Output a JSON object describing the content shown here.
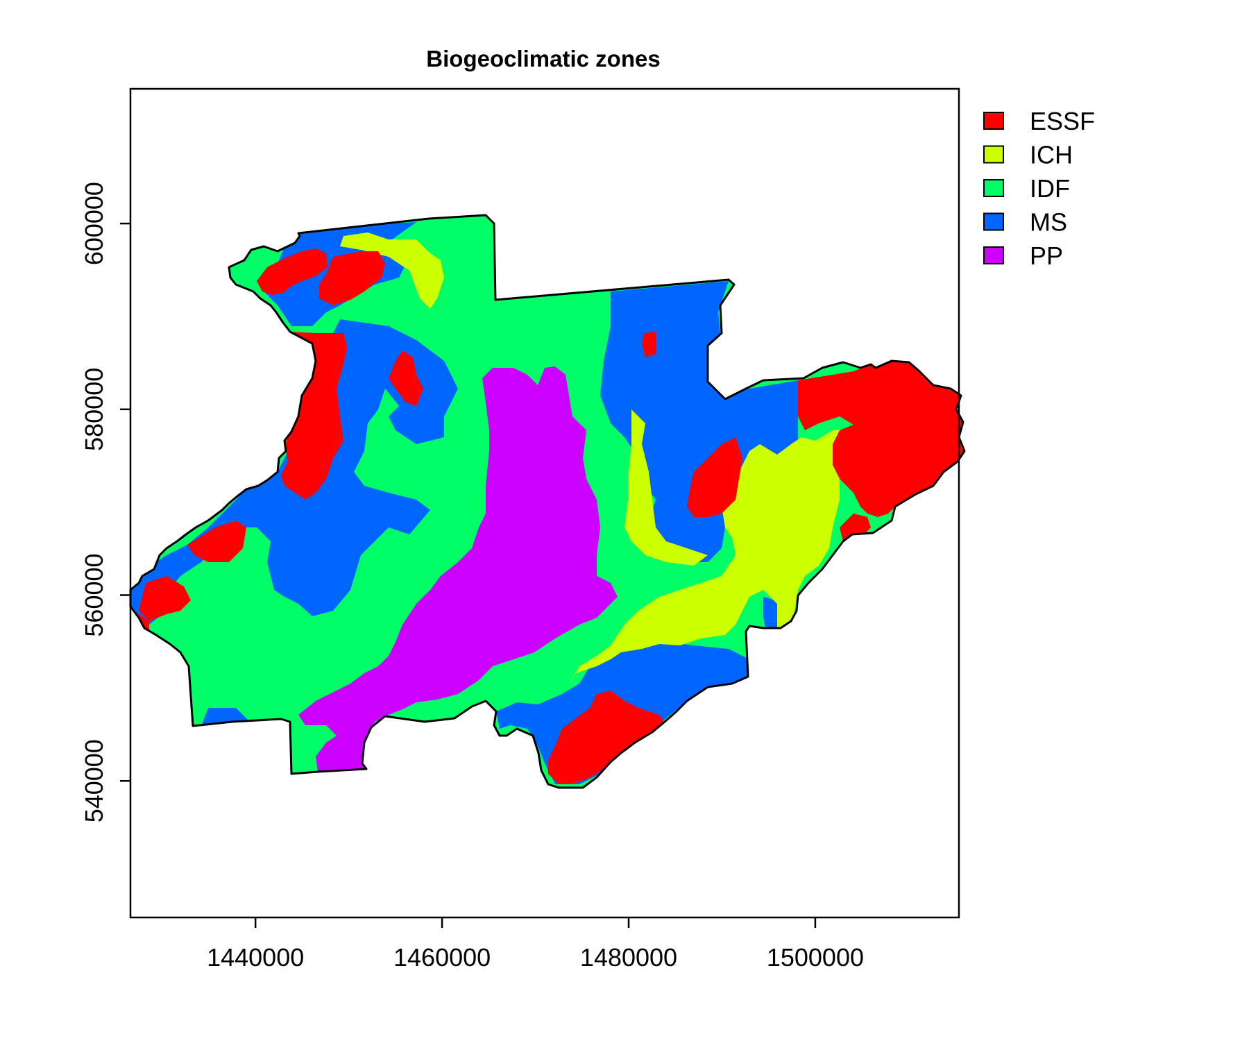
{
  "chart_data": {
    "type": "map",
    "title": "Biogeoclimatic zones",
    "xlim": [
      1426600,
      1515400
    ],
    "ylim": [
      525300,
      614500
    ],
    "x_ticks": [
      {
        "value": 1440000,
        "label": "1440000"
      },
      {
        "value": 1460000,
        "label": "1460000"
      },
      {
        "value": 1480000,
        "label": "1480000"
      },
      {
        "value": 1500000,
        "label": "1500000"
      }
    ],
    "y_ticks": [
      {
        "value": 540000,
        "label": "540000"
      },
      {
        "value": 560000,
        "label": "560000"
      },
      {
        "value": 580000,
        "label": "580000"
      },
      {
        "value": 600000,
        "label": "600000"
      }
    ],
    "legend": {
      "position": "top-right, outside plot",
      "entries": [
        {
          "label": "ESSF",
          "color": "#ff0000"
        },
        {
          "label": "ICH",
          "color": "#ccff00"
        },
        {
          "label": "IDF",
          "color": "#00ff66"
        },
        {
          "label": "MS",
          "color": "#0066ff"
        },
        {
          "label": "PP",
          "color": "#cc00ff"
        }
      ]
    },
    "grid": false
  }
}
